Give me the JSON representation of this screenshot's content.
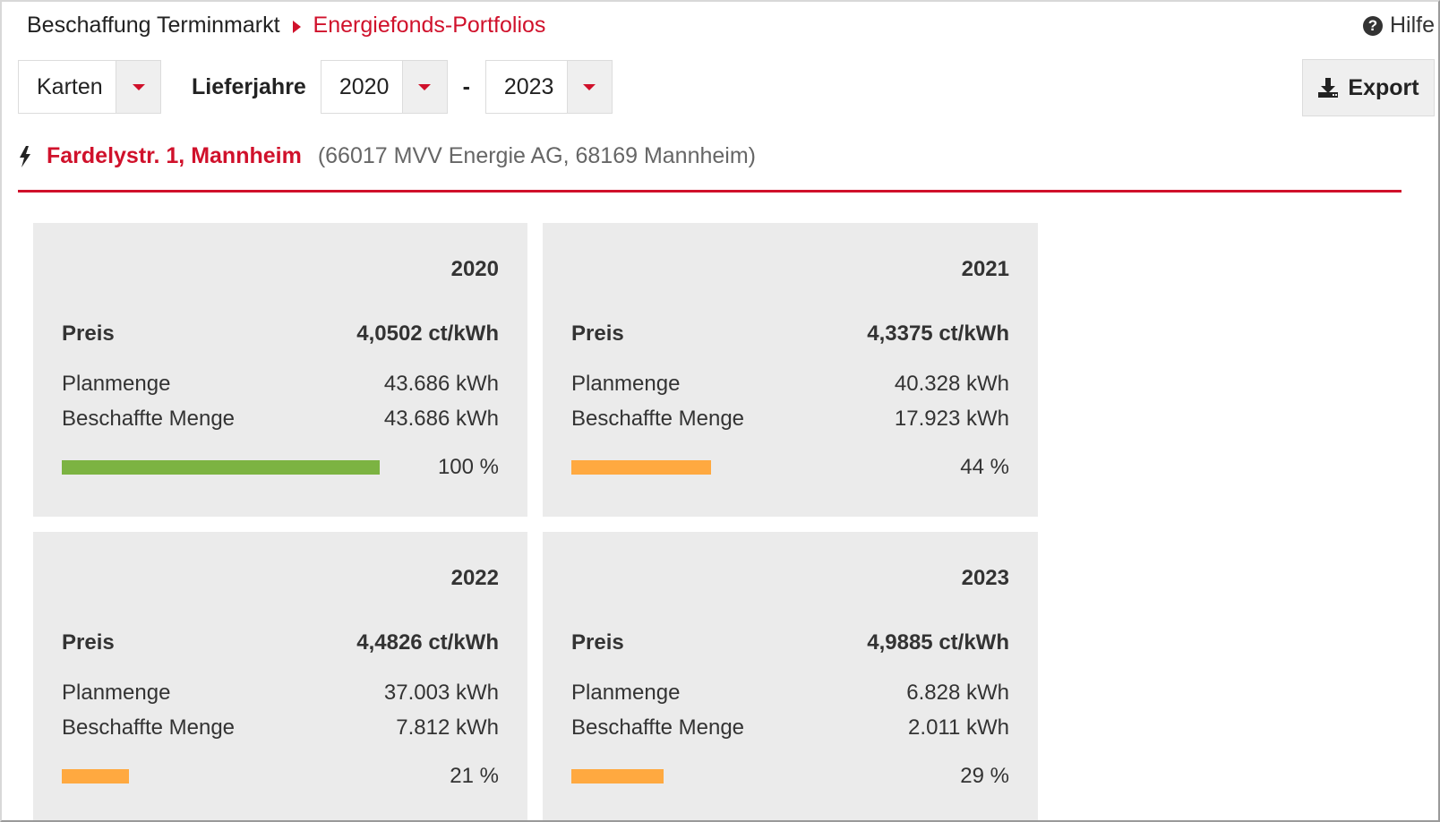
{
  "breadcrumb": {
    "root": "Beschaffung Terminmarkt",
    "current": "Energiefonds-Portfolios"
  },
  "help": {
    "label": "Hilfe",
    "icon": "question-circle-icon"
  },
  "toolbar": {
    "view_select": {
      "value": "Karten"
    },
    "years_label": "Lieferjahre",
    "year_from": {
      "value": "2020"
    },
    "separator": "-",
    "year_to": {
      "value": "2023"
    },
    "export_label": "Export",
    "export_icon": "download-icon"
  },
  "location": {
    "icon": "lightning-bolt-icon",
    "name": "Fardelystr. 1, Mannheim",
    "detail": "(66017 MVV Energie AG, 68169 Mannheim)"
  },
  "labels": {
    "price": "Preis",
    "planned": "Planmenge",
    "procured": "Beschaffte Menge"
  },
  "colors": {
    "accent": "#d0112b",
    "complete": "#7cb342",
    "partial": "#ffa940",
    "card_bg": "#ebebeb"
  },
  "cards": [
    {
      "year": "2020",
      "price": "4,0502 ct/kWh",
      "planned": "43.686 kWh",
      "procured": "43.686 kWh",
      "percent_text": "100 %",
      "progress": 1.0,
      "status": "complete"
    },
    {
      "year": "2021",
      "price": "4,3375 ct/kWh",
      "planned": "40.328 kWh",
      "procured": "17.923 kWh",
      "percent_text": "44 %",
      "progress": 0.44,
      "status": "partial"
    },
    {
      "year": "2022",
      "price": "4,4826 ct/kWh",
      "planned": "37.003 kWh",
      "procured": "7.812 kWh",
      "percent_text": "21 %",
      "progress": 0.21,
      "status": "partial"
    },
    {
      "year": "2023",
      "price": "4,9885 ct/kWh",
      "planned": "6.828 kWh",
      "procured": "2.011 kWh",
      "percent_text": "29 %",
      "progress": 0.29,
      "status": "partial"
    }
  ]
}
